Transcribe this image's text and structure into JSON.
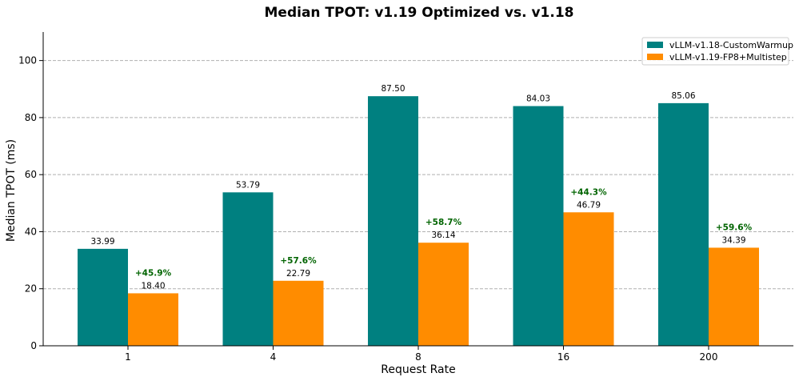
{
  "chart_data": {
    "type": "bar",
    "title": "Median TPOT: v1.19 Optimized vs. v1.18",
    "xlabel": "Request Rate",
    "ylabel": "Median TPOT (ms)",
    "categories": [
      "1",
      "4",
      "8",
      "16",
      "200"
    ],
    "series": [
      {
        "name": "vLLM-v1.18-CustomWarmup",
        "color": "#008080",
        "values": [
          33.99,
          53.79,
          87.5,
          84.03,
          85.06
        ],
        "labels": [
          "33.99",
          "53.79",
          "87.50",
          "84.03",
          "85.06"
        ]
      },
      {
        "name": "vLLM-v1.19-FP8+Multistep",
        "color": "#ff8c00",
        "values": [
          18.4,
          22.79,
          36.14,
          46.79,
          34.39
        ],
        "labels": [
          "18.40",
          "22.79",
          "36.14",
          "46.79",
          "34.39"
        ]
      }
    ],
    "improvements": [
      "+45.9%",
      "+57.6%",
      "+58.7%",
      "+44.3%",
      "+59.6%"
    ],
    "improvement_color": "#006400",
    "ylim": [
      0,
      110
    ],
    "yticks": [
      0,
      20,
      40,
      60,
      80,
      100
    ],
    "grid": true,
    "legend_position": "top-right"
  }
}
